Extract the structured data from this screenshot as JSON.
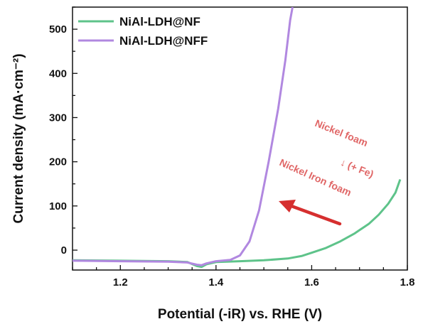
{
  "chart_data": {
    "type": "line",
    "xlabel": "Potential (-iR) vs. RHE (V)",
    "ylabel": "Current density (mA·cm⁻²)",
    "xlim": [
      1.1,
      1.8
    ],
    "ylim": [
      -45,
      550
    ],
    "x_ticks": [
      1.2,
      1.4,
      1.6,
      1.8
    ],
    "y_ticks": [
      0,
      100,
      200,
      300,
      400,
      500
    ],
    "grid": false,
    "legend_position": "top-left",
    "series": [
      {
        "name": "NiAl-LDH@NF",
        "color": "#5ec38a",
        "points": [
          [
            1.1,
            -23
          ],
          [
            1.2,
            -24
          ],
          [
            1.3,
            -25
          ],
          [
            1.34,
            -27
          ],
          [
            1.36,
            -36
          ],
          [
            1.37,
            -38
          ],
          [
            1.38,
            -32
          ],
          [
            1.4,
            -27
          ],
          [
            1.45,
            -25
          ],
          [
            1.5,
            -23
          ],
          [
            1.55,
            -19
          ],
          [
            1.58,
            -13
          ],
          [
            1.6,
            -6
          ],
          [
            1.63,
            5
          ],
          [
            1.66,
            20
          ],
          [
            1.69,
            38
          ],
          [
            1.72,
            60
          ],
          [
            1.74,
            80
          ],
          [
            1.76,
            105
          ],
          [
            1.775,
            130
          ],
          [
            1.785,
            160
          ]
        ]
      },
      {
        "name": "NiAl-LDH@NFF",
        "color": "#b188e0",
        "points": [
          [
            1.1,
            -24
          ],
          [
            1.2,
            -25
          ],
          [
            1.3,
            -26
          ],
          [
            1.34,
            -28
          ],
          [
            1.36,
            -33
          ],
          [
            1.37,
            -34
          ],
          [
            1.38,
            -30
          ],
          [
            1.4,
            -25
          ],
          [
            1.43,
            -22
          ],
          [
            1.45,
            -12
          ],
          [
            1.47,
            20
          ],
          [
            1.49,
            90
          ],
          [
            1.51,
            200
          ],
          [
            1.53,
            320
          ],
          [
            1.545,
            430
          ],
          [
            1.555,
            520
          ],
          [
            1.56,
            550
          ]
        ]
      }
    ],
    "annotations": [
      "Nickel foam",
      "↓  (+ Fe)",
      "Nickel Iron foam"
    ]
  }
}
